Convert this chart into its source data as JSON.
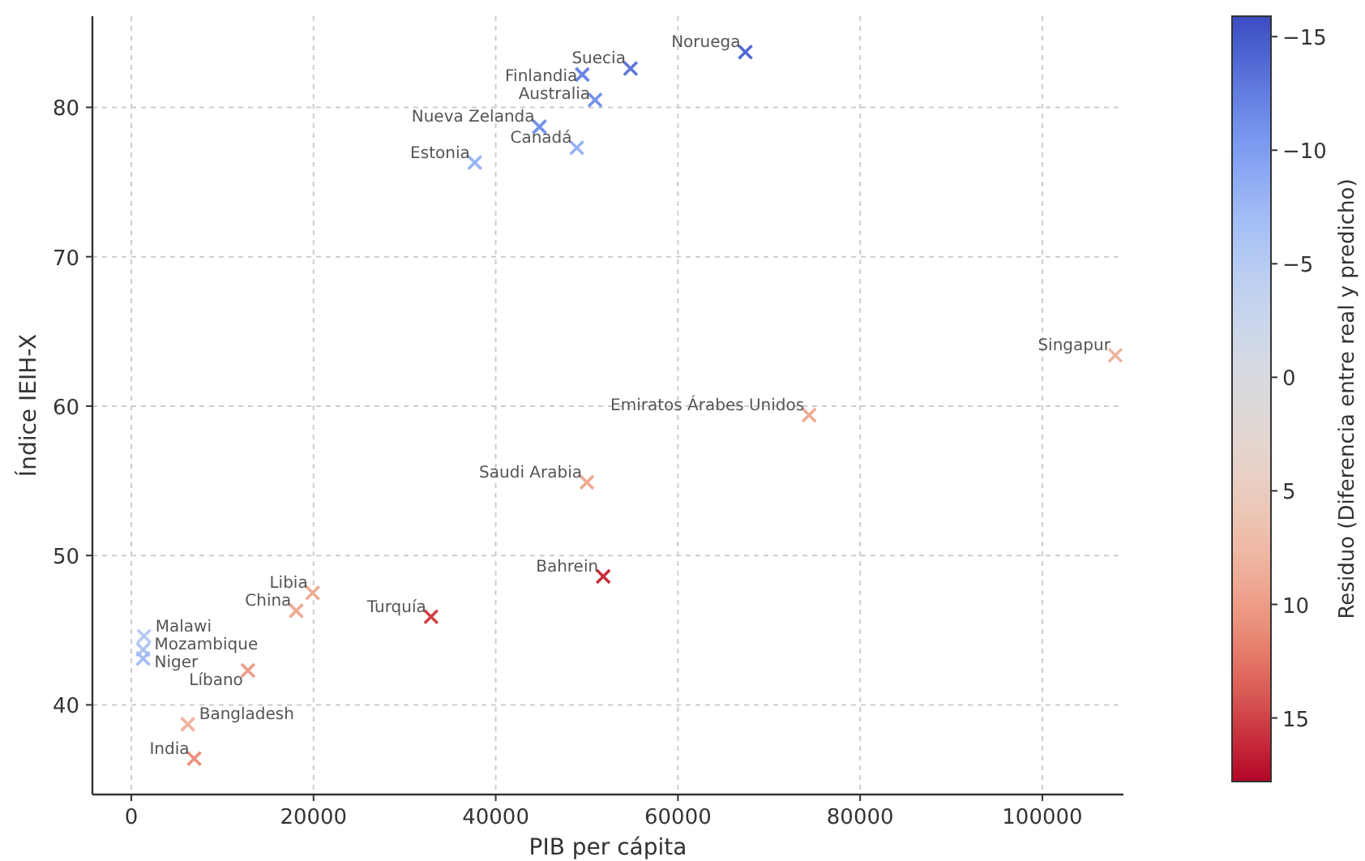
{
  "chart_data": {
    "type": "scatter",
    "xlabel": "PIB per cápita",
    "ylabel": "Índice IEIH-X",
    "clabel": "Residuo (Diferencia entre real y predicho)",
    "x": [
      67400,
      54800,
      49500,
      50900,
      44800,
      48900,
      37700,
      108000,
      74400,
      50000,
      51800,
      32900,
      19900,
      18100,
      1400,
      1300,
      1300,
      12800,
      6200,
      6900
    ],
    "values": [
      83.7,
      82.6,
      82.2,
      80.5,
      78.7,
      77.3,
      76.3,
      63.4,
      59.4,
      54.9,
      48.6,
      45.9,
      47.5,
      46.3,
      44.6,
      43.7,
      43.1,
      42.3,
      38.7,
      36.4
    ],
    "cvalues": [
      -14,
      -13,
      -12,
      -11,
      -11,
      -8,
      -8,
      8,
      9,
      9,
      16,
      15,
      9,
      9,
      -5,
      -6,
      -7,
      10,
      8,
      11
    ],
    "clim": [
      17.8,
      -15.9
    ],
    "cticks": [
      -15,
      -10,
      -5,
      0,
      5,
      10,
      15
    ],
    "xlim": [
      -4270,
      108900
    ],
    "xticks": [
      0,
      20000,
      40000,
      60000,
      80000,
      100000
    ],
    "ylim": [
      34,
      86.1
    ],
    "yticks": [
      40,
      50,
      60,
      70,
      80
    ],
    "grid": true,
    "marker": "cross",
    "annotations": [
      {
        "text": "Noruega",
        "x": 67400,
        "y": 83.7
      },
      {
        "text": "Suecia",
        "x": 54800,
        "y": 82.6
      },
      {
        "text": "Finlandia",
        "x": 49500,
        "y": 82.2
      },
      {
        "text": "Australia",
        "x": 50900,
        "y": 80.5
      },
      {
        "text": "Nueva Zelanda",
        "x": 44800,
        "y": 78.7
      },
      {
        "text": "Canadá",
        "x": 48900,
        "y": 77.3
      },
      {
        "text": "Estonia",
        "x": 37700,
        "y": 76.3
      },
      {
        "text": "Singapur",
        "x": 108000,
        "y": 63.4
      },
      {
        "text": "Emiratos Árabes Unidos",
        "x": 74400,
        "y": 59.4
      },
      {
        "text": "Saudi Arabia",
        "x": 50000,
        "y": 54.9
      },
      {
        "text": "Bahrein",
        "x": 51800,
        "y": 48.6
      },
      {
        "text": "Turquía",
        "x": 32900,
        "y": 45.9
      },
      {
        "text": "Libia",
        "x": 19900,
        "y": 47.5
      },
      {
        "text": "China",
        "x": 18100,
        "y": 46.3
      },
      {
        "text": "Malawi",
        "x": 1400,
        "y": 44.6
      },
      {
        "text": "Mozambique",
        "x": 1300,
        "y": 43.7
      },
      {
        "text": "Niger",
        "x": 1300,
        "y": 43.1
      },
      {
        "text": "Líbano",
        "x": 12800,
        "y": 42.3
      },
      {
        "text": "Bangladesh",
        "x": 6200,
        "y": 38.7
      },
      {
        "text": "India",
        "x": 6900,
        "y": 36.4
      }
    ]
  }
}
